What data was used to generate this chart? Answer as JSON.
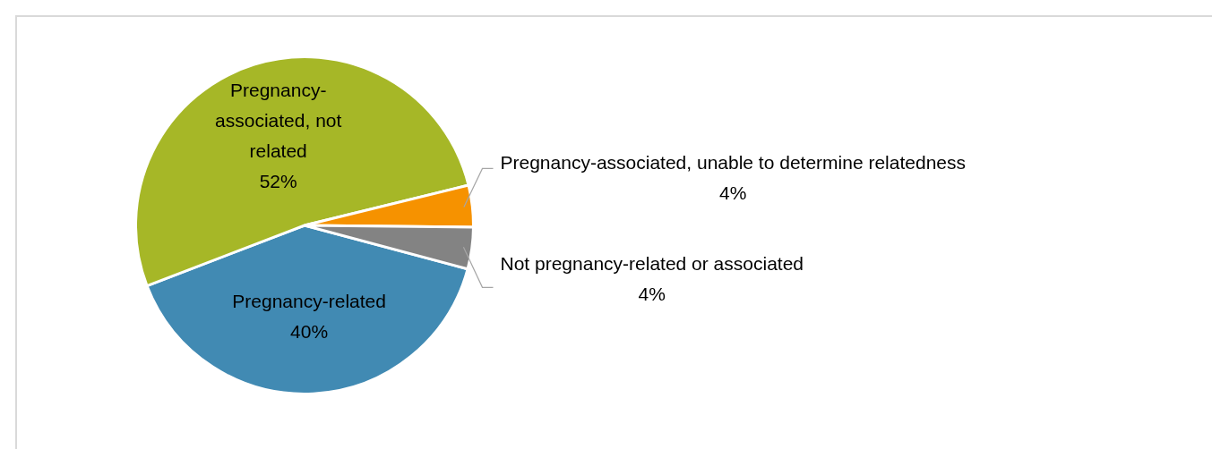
{
  "chart_data": {
    "type": "pie",
    "categories": [
      "Pregnancy-related",
      "Pregnancy-associated, not related",
      "Pregnancy-associated, unable to determine relatedness",
      "Not pregnancy-related or associated"
    ],
    "values": [
      40,
      52,
      4,
      4
    ],
    "value_labels": [
      "40%",
      "52%",
      "4%",
      "4%"
    ],
    "colors": [
      "#418ab3",
      "#a6b727",
      "#f69200",
      "#838383"
    ],
    "legend": false
  }
}
